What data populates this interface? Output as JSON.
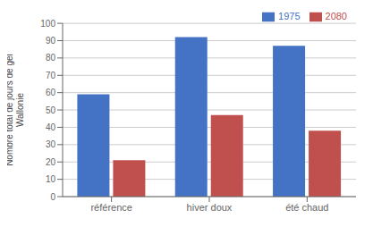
{
  "chart_data": {
    "type": "bar",
    "categories": [
      "référence",
      "hiver doux",
      "été chaud"
    ],
    "series": [
      {
        "name": "1975",
        "color": "#4472C4",
        "values": [
          59,
          92,
          87
        ]
      },
      {
        "name": "2080",
        "color": "#C0504D",
        "values": [
          21,
          47,
          38
        ]
      }
    ],
    "ylabel": "Nombre total de jours de gel\nWallonie",
    "ylim": [
      0,
      100
    ],
    "yticks": [
      0,
      10,
      20,
      30,
      40,
      50,
      60,
      70,
      80,
      90,
      100
    ],
    "grid": true,
    "legend": "upper right"
  }
}
